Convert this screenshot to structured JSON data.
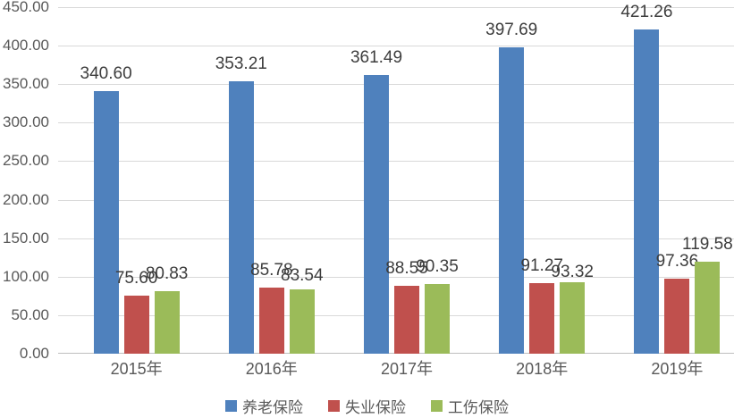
{
  "chart_data": {
    "type": "bar",
    "categories": [
      "2015年",
      "2016年",
      "2017年",
      "2018年",
      "2019年"
    ],
    "series": [
      {
        "name": "养老保险",
        "slug": "pension-insurance",
        "color": "#4F81BD",
        "values": [
          340.6,
          353.21,
          361.49,
          397.69,
          421.26
        ],
        "label_dy": [
          0,
          0,
          0,
          0,
          0
        ]
      },
      {
        "name": "失业保险",
        "slug": "unemployment-insurance",
        "color": "#C0504D",
        "values": [
          75.6,
          85.78,
          88.55,
          91.27,
          97.36
        ],
        "label_dy": [
          0,
          0,
          0,
          0,
          0
        ]
      },
      {
        "name": "工伤保险",
        "slug": "work-injury-insurance",
        "color": "#9BBB59",
        "values": [
          80.83,
          83.54,
          90.35,
          93.32,
          119.58
        ],
        "label_dy": [
          0,
          4,
          0,
          8,
          0
        ]
      }
    ],
    "title": "",
    "xlabel": "",
    "ylabel": "",
    "ylim": [
      0,
      450
    ],
    "ytick_step": 50,
    "ytick_decimals": 2,
    "grid": true,
    "data_labels": true,
    "label_decimals": 2,
    "legend_position": "bottom"
  },
  "colors": {
    "background": "#ffffff",
    "gridline": "#d9d9d9",
    "axis_line": "#bfbfbf",
    "axis_text": "#595959",
    "data_label_text": "#3d3d3d"
  }
}
